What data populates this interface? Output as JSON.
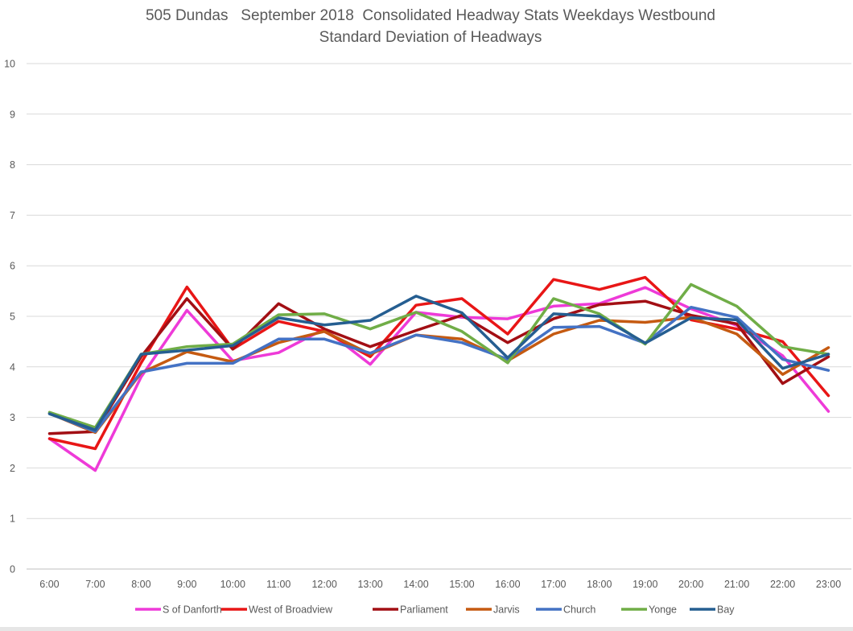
{
  "chart_data": {
    "type": "line",
    "title": "505 Dundas   September 2018  Consolidated Headway Stats Weekdays Westbound",
    "subtitle": "Standard Deviation of Headways",
    "xlabel": "",
    "ylabel": "",
    "ylim": [
      0,
      10
    ],
    "y_ticks": [
      0,
      1,
      2,
      3,
      4,
      5,
      6,
      7,
      8,
      9,
      10
    ],
    "grid": true,
    "legend_position": "bottom",
    "categories": [
      "6:00",
      "7:00",
      "8:00",
      "9:00",
      "10:00",
      "11:00",
      "12:00",
      "13:00",
      "14:00",
      "15:00",
      "16:00",
      "17:00",
      "18:00",
      "19:00",
      "20:00",
      "21:00",
      "22:00",
      "23:00"
    ],
    "series": [
      {
        "name": "S of Danforth",
        "color": "#ee3ad8",
        "values": [
          2.58,
          1.95,
          3.8,
          5.12,
          4.12,
          4.28,
          4.75,
          4.05,
          5.08,
          4.98,
          4.95,
          5.2,
          5.25,
          5.57,
          5.15,
          4.82,
          4.22,
          3.12
        ]
      },
      {
        "name": "West of Broadview",
        "color": "#e81616",
        "values": [
          2.58,
          2.38,
          4.08,
          5.58,
          4.35,
          4.9,
          4.7,
          4.2,
          5.22,
          5.35,
          4.65,
          5.73,
          5.53,
          5.77,
          4.93,
          4.75,
          4.5,
          3.43
        ]
      },
      {
        "name": "Parliament",
        "color": "#a20f14",
        "values": [
          2.68,
          2.72,
          4.2,
          5.35,
          4.35,
          5.25,
          4.75,
          4.4,
          4.72,
          5.02,
          4.48,
          4.95,
          5.23,
          5.3,
          5.02,
          4.85,
          3.67,
          4.2
        ]
      },
      {
        "name": "Jarvis",
        "color": "#c55a11",
        "values": [
          3.08,
          2.7,
          3.88,
          4.3,
          4.1,
          4.48,
          4.7,
          4.25,
          4.63,
          4.55,
          4.12,
          4.65,
          4.92,
          4.88,
          4.98,
          4.65,
          3.85,
          4.38
        ]
      },
      {
        "name": "Church",
        "color": "#4472c4",
        "values": [
          3.08,
          2.72,
          3.9,
          4.07,
          4.07,
          4.55,
          4.55,
          4.27,
          4.63,
          4.48,
          4.15,
          4.78,
          4.8,
          4.47,
          5.18,
          4.98,
          4.15,
          3.93
        ]
      },
      {
        "name": "Yonge",
        "color": "#70ad47",
        "values": [
          3.1,
          2.8,
          4.25,
          4.4,
          4.45,
          5.03,
          5.05,
          4.75,
          5.08,
          4.7,
          4.08,
          5.35,
          5.05,
          4.45,
          5.63,
          5.2,
          4.4,
          4.25
        ]
      },
      {
        "name": "Bay",
        "color": "#255e91",
        "values": [
          3.07,
          2.75,
          4.25,
          4.33,
          4.42,
          4.97,
          4.83,
          4.92,
          5.4,
          5.07,
          4.18,
          5.05,
          5.0,
          4.47,
          4.97,
          4.93,
          3.97,
          4.25
        ]
      }
    ]
  }
}
